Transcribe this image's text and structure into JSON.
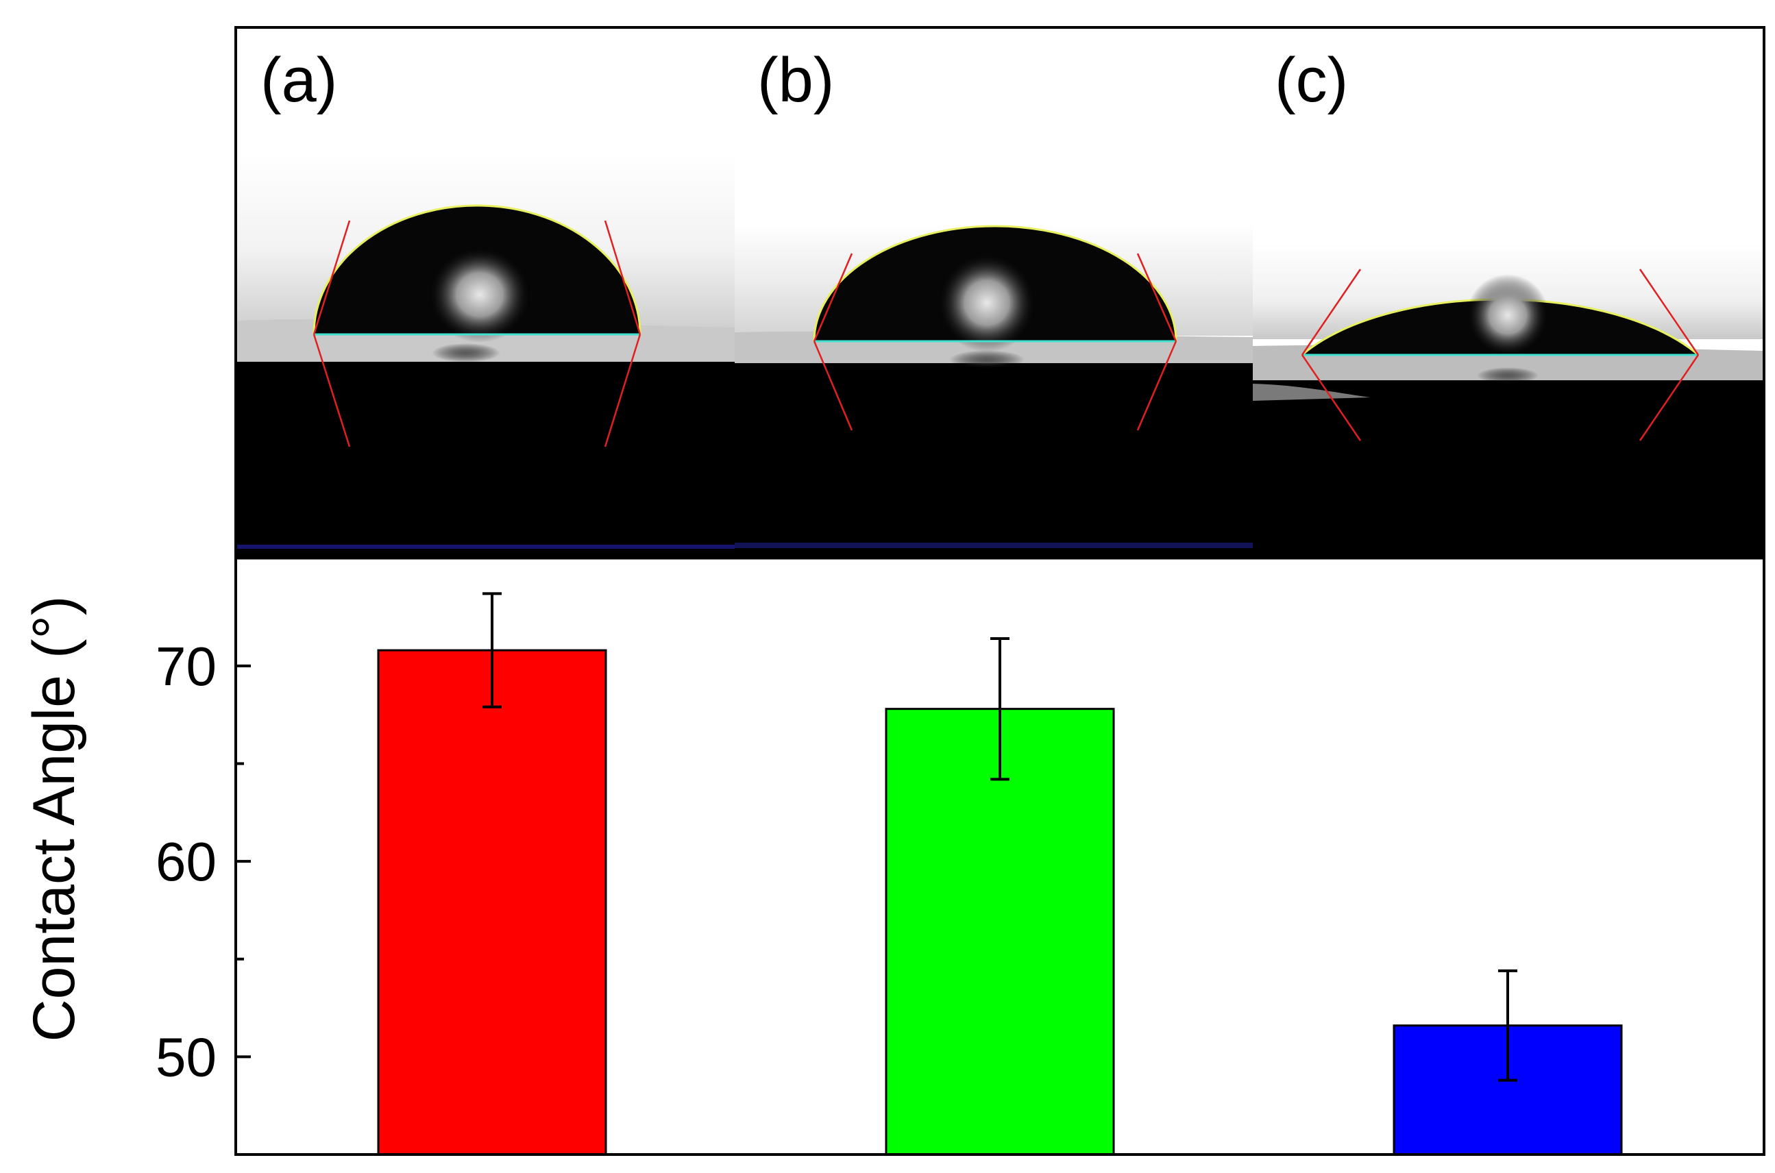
{
  "panels": [
    {
      "label": "(a)",
      "contact_angle_fit": "red"
    },
    {
      "label": "(b)",
      "contact_angle_fit": "red"
    },
    {
      "label": "(c)",
      "contact_angle_fit": "red"
    }
  ],
  "colors": {
    "bar_a": "#ff0000",
    "bar_b": "#00ff00",
    "bar_c": "#0000ff",
    "baseline": "#40e0d0",
    "tangent": "#e02020",
    "droplet_edge": "#e8f060"
  },
  "chart_data": {
    "type": "bar",
    "categories": [
      "(a)",
      "(b)",
      "(c)"
    ],
    "values": [
      70.8,
      67.8,
      51.6
    ],
    "errors": [
      2.9,
      3.6,
      2.8
    ],
    "colors": [
      "#ff0000",
      "#00ff00",
      "#0000ff"
    ],
    "title": "",
    "xlabel": "",
    "ylabel": "Contact Angle (°)",
    "ylim": [
      45,
      75.5
    ],
    "yticks": [
      50,
      60,
      70
    ],
    "ytick_labels": [
      "50",
      "60",
      "70"
    ],
    "minor_yticks": [
      55,
      65
    ],
    "grid": false,
    "legend": "none"
  }
}
